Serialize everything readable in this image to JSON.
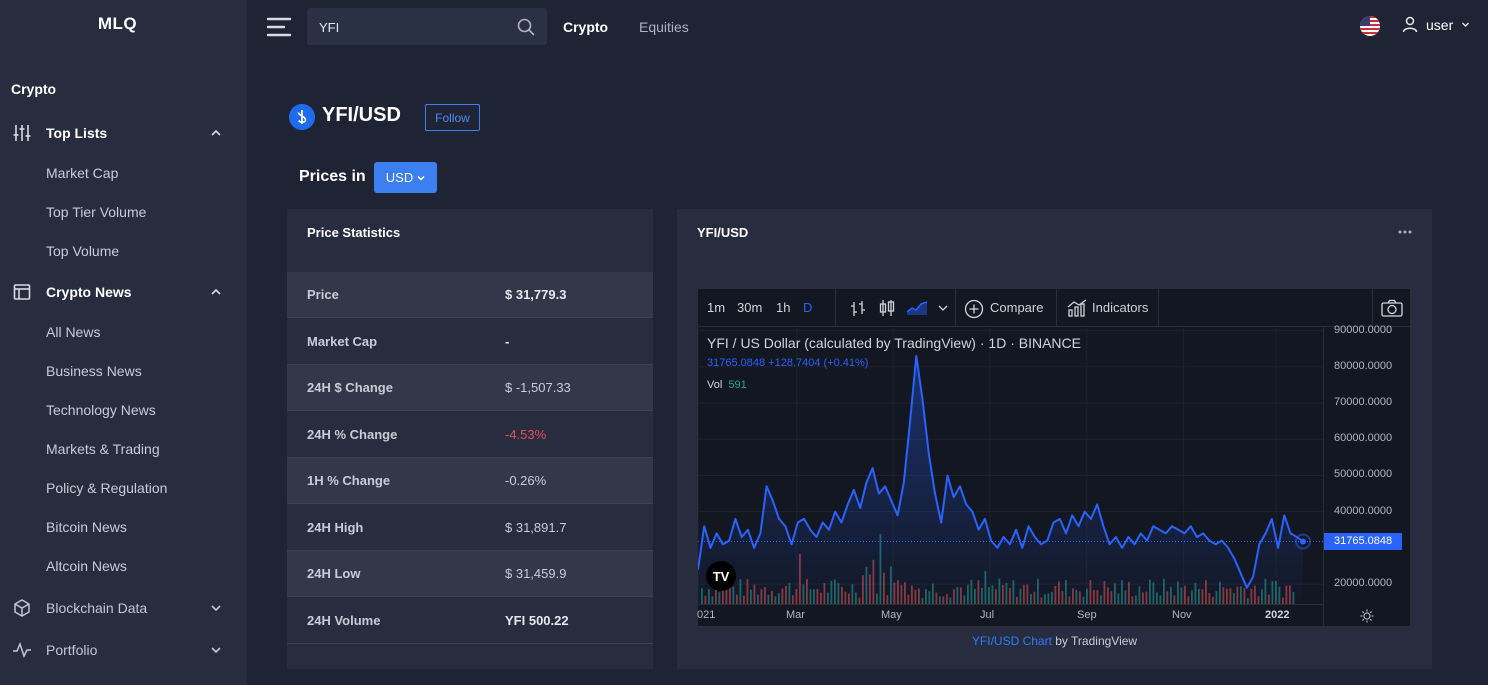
{
  "app": {
    "logo": "MLQ"
  },
  "sidebar": {
    "section": "Crypto",
    "groups": [
      {
        "label": "Top Lists",
        "icon": "sliders-icon",
        "expanded": true
      },
      {
        "label": "Crypto News",
        "icon": "news-icon",
        "expanded": true
      },
      {
        "label": "Blockchain Data",
        "icon": "cube-icon",
        "expanded": false
      },
      {
        "label": "Portfolio",
        "icon": "pulse-icon",
        "expanded": false
      }
    ],
    "top_lists_items": [
      "Market Cap",
      "Top Tier Volume",
      "Top Volume"
    ],
    "news_items": [
      "All News",
      "Business News",
      "Technology News",
      "Markets & Trading",
      "Policy & Regulation",
      "Bitcoin News",
      "Altcoin News"
    ]
  },
  "topbar": {
    "search_value": "YFI",
    "nav": [
      "Crypto",
      "Equities"
    ],
    "active_nav": "Crypto",
    "user": "user",
    "flag": "us-flag-icon"
  },
  "header": {
    "pair": "YFI/USD",
    "follow_label": "Follow",
    "prices_in_label": "Prices in",
    "currency": "USD"
  },
  "stats": {
    "title": "Price Statistics",
    "rows": [
      {
        "label": "Price",
        "value": "$ 31,779.3",
        "style": "bold"
      },
      {
        "label": "Market Cap",
        "value": "-",
        "style": "bold"
      },
      {
        "label": "24H $ Change",
        "value": "$ -1,507.33",
        "style": "normal"
      },
      {
        "label": "24H % Change",
        "value": "-4.53%",
        "style": "neg"
      },
      {
        "label": "1H % Change",
        "value": "-0.26%",
        "style": "normal"
      },
      {
        "label": "24H High",
        "value": "$ 31,891.7",
        "style": "normal"
      },
      {
        "label": "24H Low",
        "value": "$ 31,459.9",
        "style": "normal"
      },
      {
        "label": "24H Volume",
        "value": "YFI 500.22",
        "style": "bold"
      }
    ]
  },
  "chart_card": {
    "title": "YFI/USD",
    "toolbar": {
      "intervals": [
        "1m",
        "30m",
        "1h",
        "D"
      ],
      "active_interval": "D",
      "compare_label": "Compare",
      "indicators_label": "Indicators"
    },
    "legend_title": "YFI / US Dollar (calculated by TradingView) · 1D · BINANCE",
    "legend_values": "31765.0848  +128.7404 (+0.41%)",
    "vol_label": "Vol",
    "vol_value": "591",
    "last_price_label": "31765.0848",
    "credit_link": "YFI/USD Chart",
    "credit_suffix": " by TradingView"
  },
  "chart_data": {
    "type": "area",
    "title": "YFI / US Dollar (calculated by TradingView) · 1D · BINANCE",
    "x_tick_labels": [
      "021",
      "Mar",
      "May",
      "Jul",
      "Sep",
      "Nov",
      "2022"
    ],
    "y_tick_labels": [
      "90000.0000",
      "80000.0000",
      "70000.0000",
      "60000.0000",
      "50000.0000",
      "40000.0000",
      "20000.0000"
    ],
    "y_ticks": [
      90000,
      80000,
      70000,
      60000,
      50000,
      40000,
      20000
    ],
    "ylim": [
      14500,
      91000
    ],
    "last_price": 31765.0848,
    "series": [
      {
        "values": [
          24000,
          36000,
          30000,
          34000,
          31000,
          32000,
          38000,
          33000,
          35000,
          30000,
          34000,
          47000,
          43000,
          38000,
          36000,
          31000,
          37000,
          38000,
          35000,
          33000,
          37000,
          35000,
          40000,
          37000,
          42000,
          46000,
          41000,
          48000,
          52000,
          45000,
          47000,
          43000,
          39000,
          48000,
          65000,
          83000,
          71000,
          56000,
          45000,
          37000,
          50000,
          44000,
          47000,
          42000,
          40000,
          35000,
          38000,
          32000,
          30000,
          33000,
          31000,
          35000,
          30000,
          36000,
          33000,
          31000,
          32000,
          37000,
          38000,
          34000,
          39000,
          36000,
          40000,
          38000,
          42000,
          36000,
          31000,
          33000,
          30000,
          33000,
          31000,
          34000,
          32000,
          36000,
          35000,
          34000,
          36000,
          35000,
          34000,
          36000,
          33000,
          34000,
          32000,
          31000,
          32000,
          30000,
          27000,
          23000,
          19000,
          22000,
          31000,
          34000,
          38000,
          30000,
          39000,
          34000,
          33000,
          31765
        ]
      }
    ],
    "grid": true,
    "volume_shown": true
  }
}
